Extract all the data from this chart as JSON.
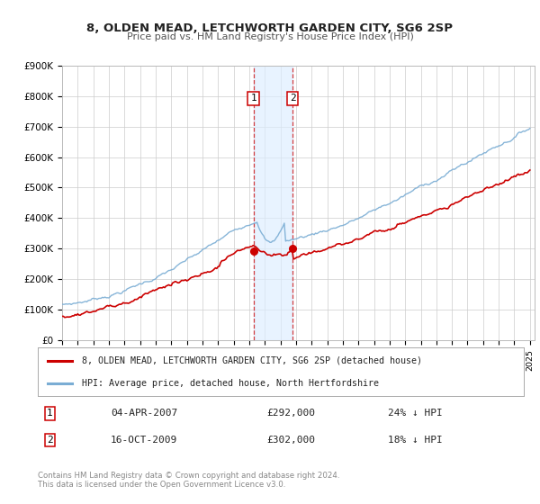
{
  "title": "8, OLDEN MEAD, LETCHWORTH GARDEN CITY, SG6 2SP",
  "subtitle": "Price paid vs. HM Land Registry's House Price Index (HPI)",
  "legend_label_red": "8, OLDEN MEAD, LETCHWORTH GARDEN CITY, SG6 2SP (detached house)",
  "legend_label_blue": "HPI: Average price, detached house, North Hertfordshire",
  "transaction1_date": "04-APR-2007",
  "transaction1_price": "£292,000",
  "transaction1_hpi": "24% ↓ HPI",
  "transaction2_date": "16-OCT-2009",
  "transaction2_price": "£302,000",
  "transaction2_hpi": "18% ↓ HPI",
  "footer": "Contains HM Land Registry data © Crown copyright and database right 2024.\nThis data is licensed under the Open Government Licence v3.0.",
  "color_red": "#cc0000",
  "color_blue": "#7aadd4",
  "ylim_min": 0,
  "ylim_max": 900000,
  "yticks": [
    0,
    100000,
    200000,
    300000,
    400000,
    500000,
    600000,
    700000,
    800000,
    900000
  ],
  "ytick_labels": [
    "£0",
    "£100K",
    "£200K",
    "£300K",
    "£400K",
    "£500K",
    "£600K",
    "£700K",
    "£800K",
    "£900K"
  ],
  "xmin": 1995.0,
  "xmax": 2025.3,
  "marker1_x": 2007.27,
  "marker1_y": 292000,
  "marker2_x": 2009.79,
  "marker2_y": 302000,
  "shade_x1": 2007.27,
  "shade_x2": 2009.79,
  "background_color": "#ffffff",
  "grid_color": "#cccccc",
  "shade_color": "#ddeeff"
}
